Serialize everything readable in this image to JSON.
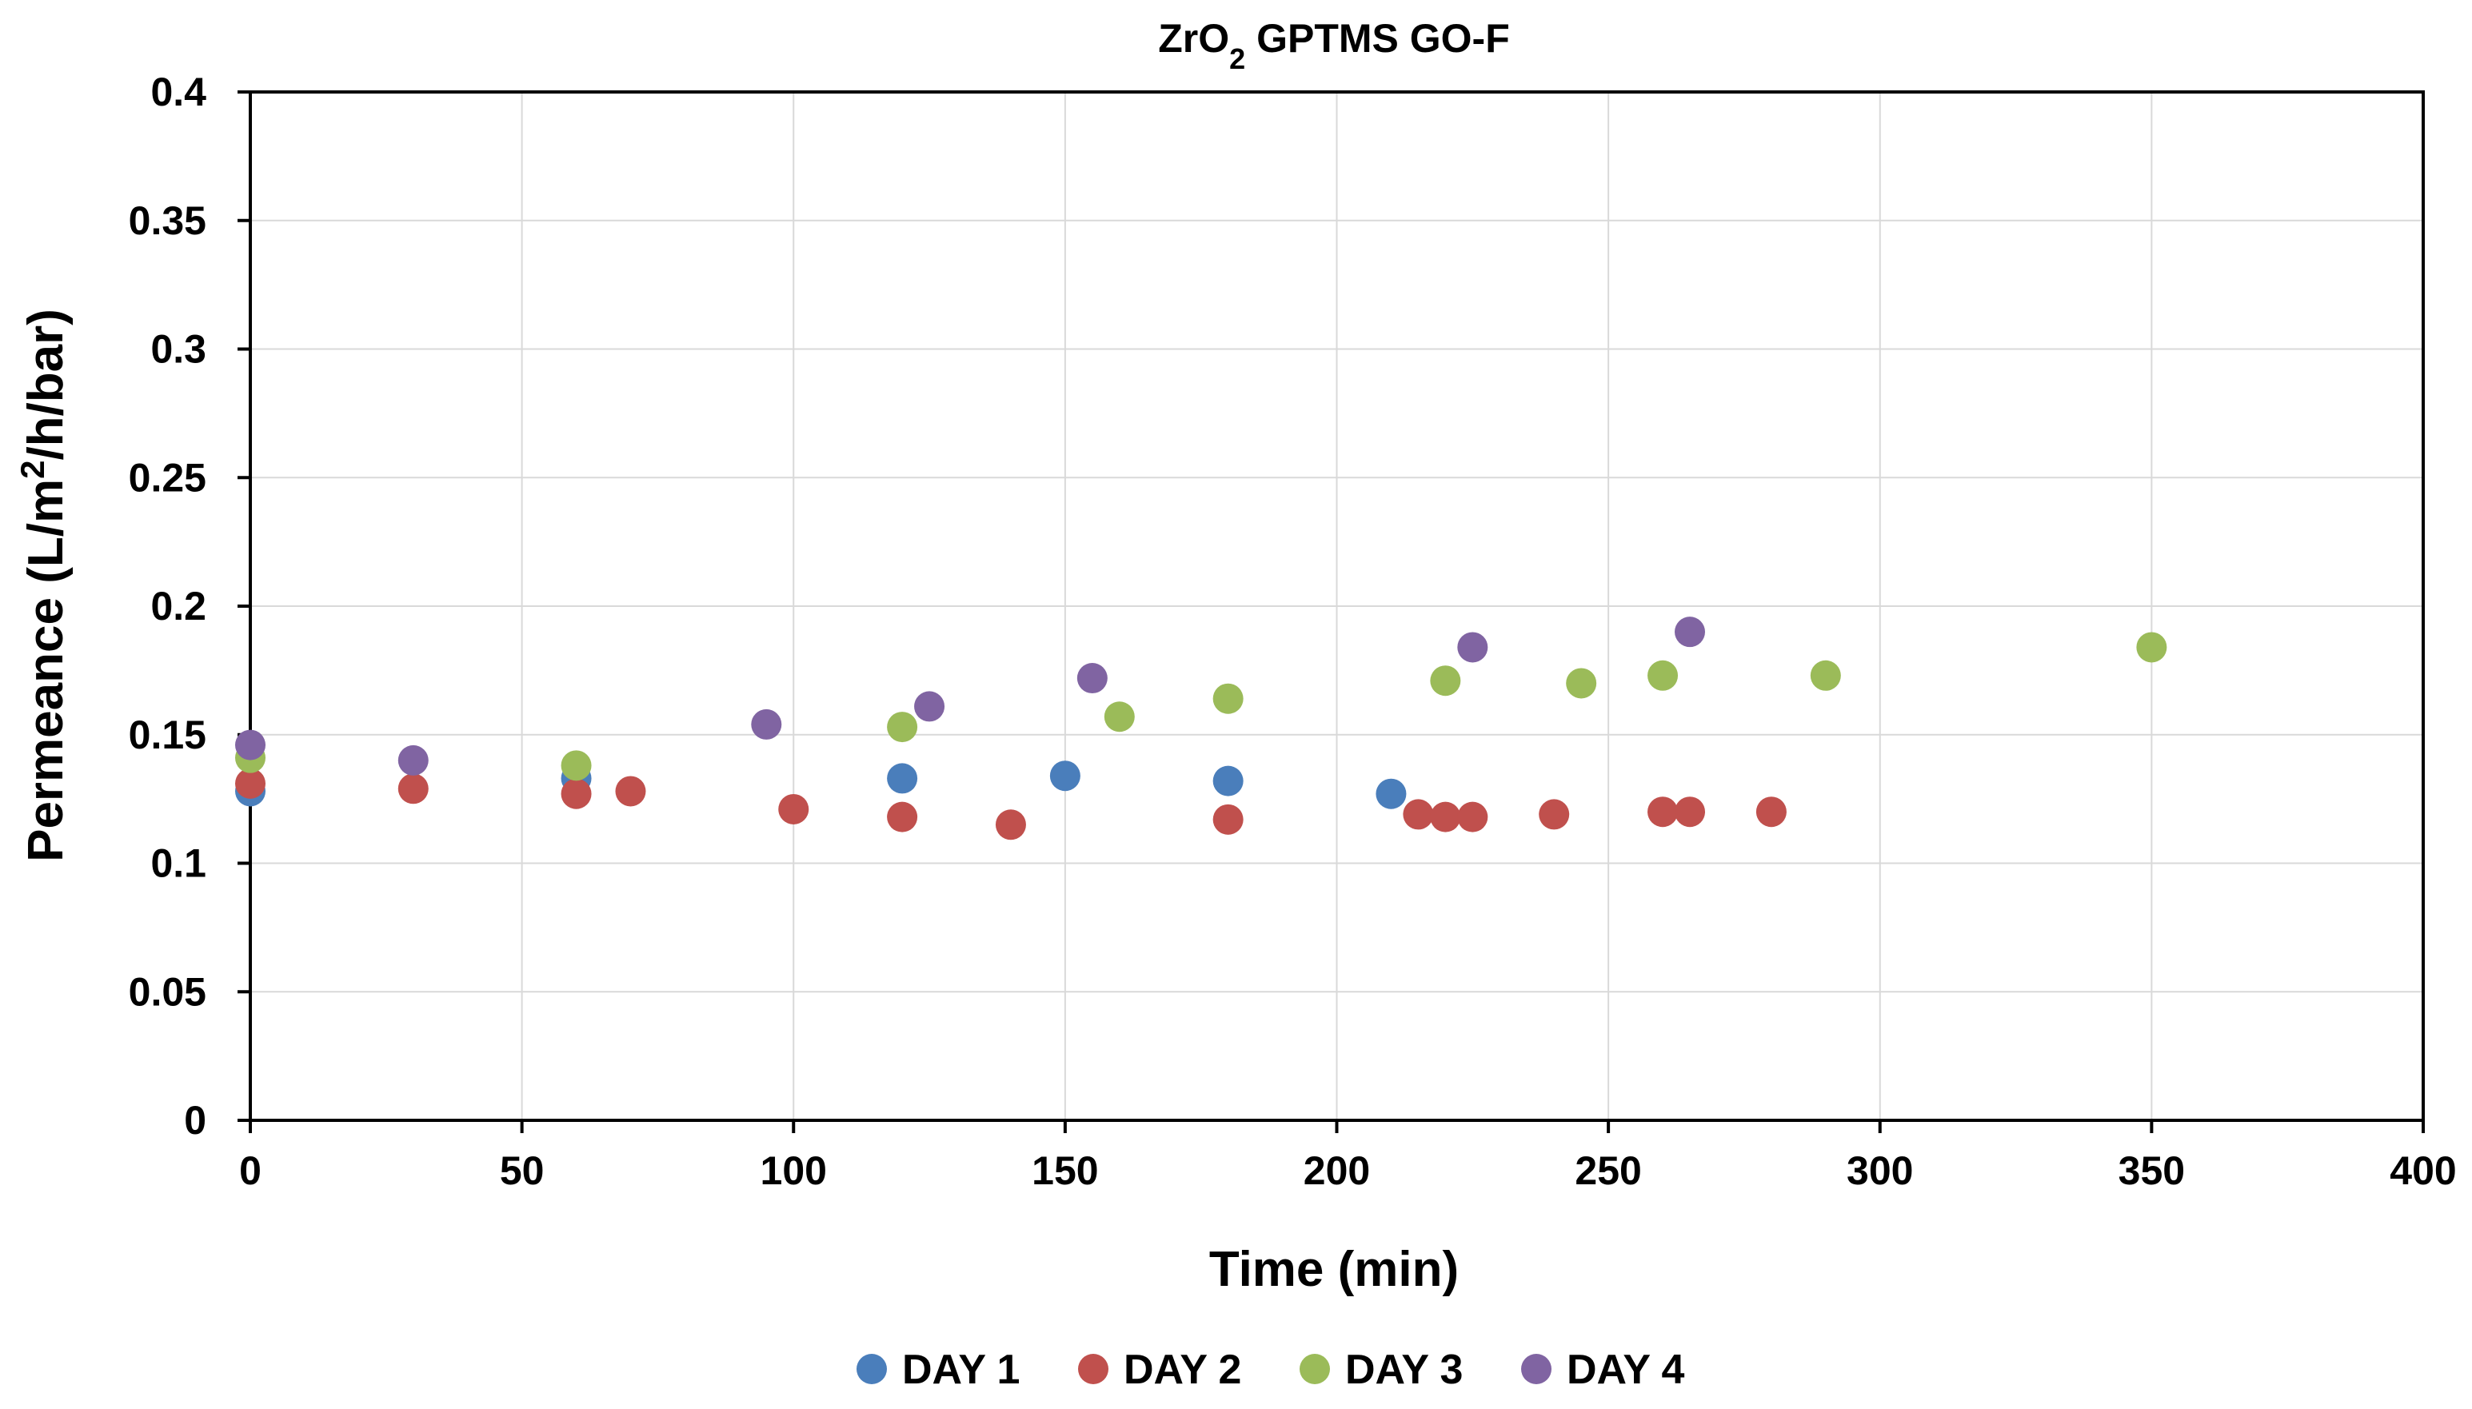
{
  "chart_data": {
    "type": "scatter",
    "title": "ZrO2 GPTMS GO-F",
    "title_parts": {
      "base": "ZrO",
      "subscript": "2",
      "rest": " GPTMS GO-F"
    },
    "xlabel": "Time (min)",
    "ylabel": "Permeance (L/m2/h/bar)",
    "ylabel_parts": {
      "before": "Permeance (L/m",
      "superscript": "2",
      "after": "/h/bar)"
    },
    "xlim": [
      0,
      400
    ],
    "ylim": [
      0,
      0.4
    ],
    "x_ticks": [
      0,
      50,
      100,
      150,
      200,
      250,
      300,
      350,
      400
    ],
    "y_ticks": [
      0,
      0.05,
      0.1,
      0.15,
      0.2,
      0.25,
      0.3,
      0.35,
      0.4
    ],
    "x_tick_labels": [
      "0",
      "50",
      "100",
      "150",
      "200",
      "250",
      "300",
      "350",
      "400"
    ],
    "y_tick_labels": [
      "0",
      "0.05",
      "0.1",
      "0.15",
      "0.2",
      "0.25",
      "0.3",
      "0.35",
      "0.4"
    ],
    "grid": true,
    "legend_position": "bottom",
    "series": [
      {
        "name": "DAY 1",
        "color": "#4a7ebb",
        "points": [
          [
            0,
            0.128
          ],
          [
            60,
            0.133
          ],
          [
            120,
            0.133
          ],
          [
            150,
            0.134
          ],
          [
            180,
            0.132
          ],
          [
            210,
            0.127
          ]
        ]
      },
      {
        "name": "DAY 2",
        "color": "#c0504d",
        "points": [
          [
            0,
            0.131
          ],
          [
            30,
            0.129
          ],
          [
            60,
            0.127
          ],
          [
            70,
            0.128
          ],
          [
            100,
            0.121
          ],
          [
            120,
            0.118
          ],
          [
            140,
            0.115
          ],
          [
            180,
            0.117
          ],
          [
            215,
            0.119
          ],
          [
            220,
            0.118
          ],
          [
            225,
            0.118
          ],
          [
            240,
            0.119
          ],
          [
            260,
            0.12
          ],
          [
            265,
            0.12
          ],
          [
            280,
            0.12
          ]
        ]
      },
      {
        "name": "DAY 3",
        "color": "#9bbb59",
        "points": [
          [
            0,
            0.141
          ],
          [
            60,
            0.138
          ],
          [
            120,
            0.153
          ],
          [
            160,
            0.157
          ],
          [
            180,
            0.164
          ],
          [
            220,
            0.171
          ],
          [
            245,
            0.17
          ],
          [
            260,
            0.173
          ],
          [
            290,
            0.173
          ],
          [
            350,
            0.184
          ]
        ]
      },
      {
        "name": "DAY 4",
        "color": "#8064a2",
        "points": [
          [
            0,
            0.146
          ],
          [
            30,
            0.14
          ],
          [
            95,
            0.154
          ],
          [
            125,
            0.161
          ],
          [
            155,
            0.172
          ],
          [
            225,
            0.184
          ],
          [
            265,
            0.19
          ]
        ]
      }
    ]
  }
}
